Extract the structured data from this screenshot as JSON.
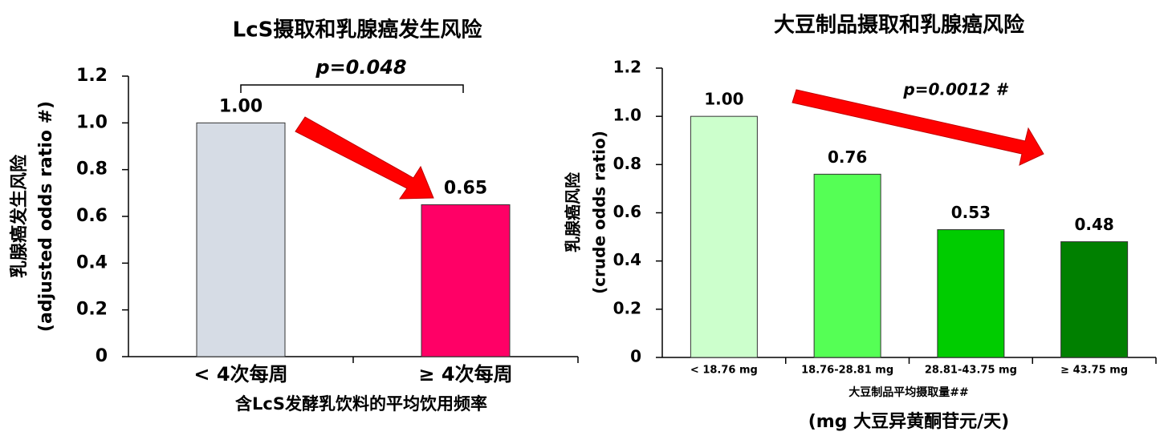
{
  "chart_data": [
    {
      "type": "bar",
      "title": "LcS摄取和乳腺癌发生风险",
      "ylabel": [
        "乳腺癌发生风险",
        "(adjusted odds ratio #)"
      ],
      "ylabel_colors": [
        "#2e75b6",
        "#000000"
      ],
      "xlabel": [
        "含LcS发酵乳饮料的平均饮用频率"
      ],
      "xlabel_colors": [
        "#2e75b6"
      ],
      "categories": [
        "< 4次每周",
        "≥ 4次每周"
      ],
      "values": [
        1.0,
        0.65
      ],
      "value_labels": [
        "1.00",
        "0.65"
      ],
      "value_label_colors": [
        "#000000",
        "#e8211d"
      ],
      "colors": [
        "#d6dce5",
        "#ff0066"
      ],
      "annotation": "p=0.048",
      "annotation_color": "#000000",
      "ylim": [
        0,
        1.2
      ],
      "yticks": [
        0,
        0.2,
        0.4,
        0.6,
        0.8,
        {
          "value": 1,
          "label": "1.0"
        },
        1.2
      ]
    },
    {
      "type": "bar",
      "title": "大豆制品摄取和乳腺癌风险",
      "ylabel": [
        "乳腺癌风险",
        "(crude odds ratio)"
      ],
      "ylabel_colors": [
        "#000000",
        "#000000"
      ],
      "xlabel": [
        "大豆制品平均摄取量##",
        "(mg 大豆异黄酮苷元/天)"
      ],
      "xlabel_colors": [
        "#000000",
        "#000000"
      ],
      "categories": [
        "< 18.76 mg",
        "18.76-28.81 mg",
        "28.81-43.75 mg",
        "≥ 43.75 mg"
      ],
      "values": [
        1.0,
        0.76,
        0.53,
        0.48
      ],
      "value_labels": [
        "1.00",
        "0.76",
        "0.53",
        "0.48"
      ],
      "value_label_colors": [
        "#000000",
        "#000000",
        "#000000",
        "#000000"
      ],
      "colors": [
        "#ccffcc",
        "#55ff55",
        "#00cc00",
        "#008000"
      ],
      "annotation": "p=0.0012 #",
      "annotation_color": "#e8211d",
      "ylim": [
        0,
        1.2
      ],
      "yticks": [
        0,
        0.2,
        0.4,
        0.6,
        0.8,
        {
          "value": 1,
          "label": "1.0"
        },
        1.2
      ]
    }
  ]
}
